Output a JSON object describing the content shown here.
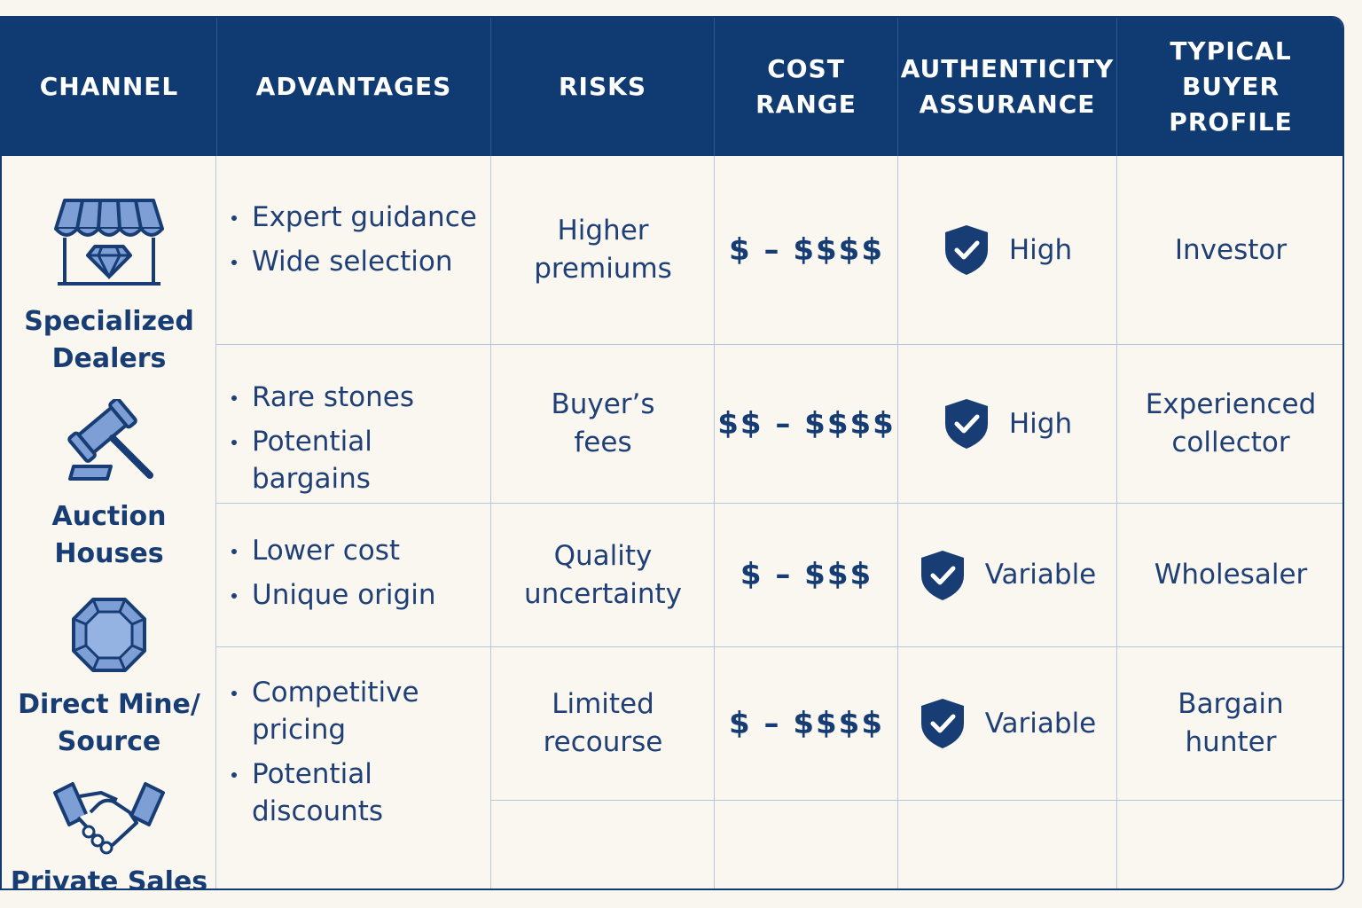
{
  "header": {
    "channel": "CHANNEL",
    "advantages": "ADVANTAGES",
    "risks": "RISKS",
    "cost_range": "COST\nRANGE",
    "authenticity": "AUTHENTICITY\nASSURANCE",
    "buyer_profile": "TYPICAL\nBUYER PROFILE"
  },
  "channels": [
    {
      "name": "Specialized\nDealers",
      "icon": "storefront-diamond-icon"
    },
    {
      "name": "Auction\nHouses",
      "icon": "gavel-icon"
    },
    {
      "name": "Direct Mine/\nSource",
      "icon": "gemstone-icon"
    },
    {
      "name": "Private Sales",
      "icon": "handshake-icon"
    }
  ],
  "rows": [
    {
      "advantages": [
        "Expert guidance",
        "Wide selection"
      ],
      "risks": "Higher\npremiums",
      "cost": "$ – $$$$",
      "authenticity": "High",
      "buyer": "Investor"
    },
    {
      "advantages": [
        "Rare stones",
        "Potential bargains"
      ],
      "risks": "Buyer’s\nfees",
      "cost": "$$ – $$$$",
      "authenticity": "High",
      "buyer": "Experienced\ncollector"
    },
    {
      "advantages": [
        "Lower cost",
        "Unique origin"
      ],
      "risks": "Quality\nuncertainty",
      "cost": "$ – $$$",
      "authenticity": "Variable",
      "buyer": "Wholesaler"
    },
    {
      "advantages": [
        "Competitive\npricing",
        "Potential\ndiscounts"
      ],
      "risks": "Limited\nrecourse",
      "cost": "$ – $$$$",
      "authenticity": "Variable",
      "buyer": "Bargain\nhunter"
    }
  ],
  "colors": {
    "header_bg": "#0f3a72",
    "accent": "#173d74",
    "icon_fill": "#7d9fd6"
  }
}
